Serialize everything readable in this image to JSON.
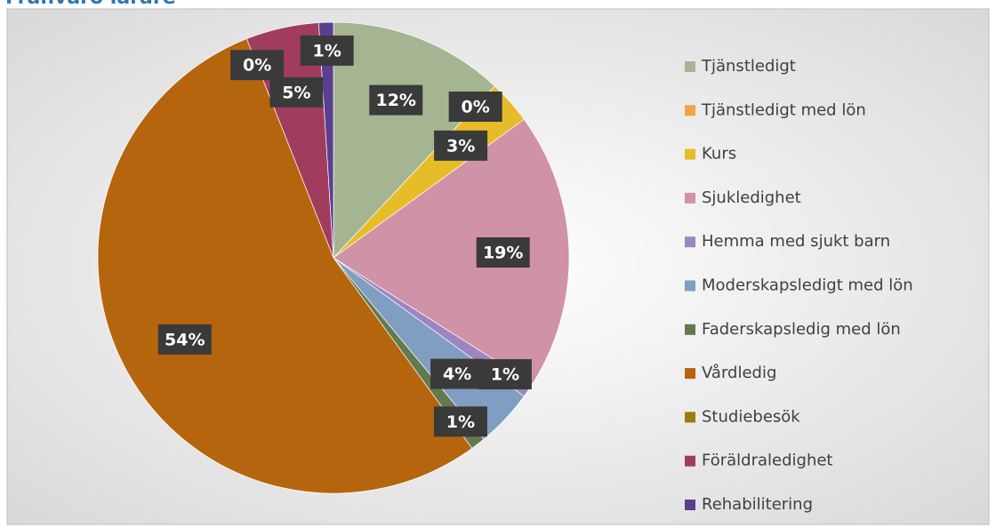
{
  "chart_data": {
    "type": "pie",
    "title": "Frånvaro lärare",
    "categories": [
      "Tjänstledigt",
      "Tjänstledigt med lön",
      "Kurs",
      "Sjukledighet",
      "Hemma med sjukt barn",
      "Moderskapsledigt med lön",
      "Faderskapsledig med lön",
      "Vårdledig",
      "Studiebesök",
      "Föräldraledighet",
      "Rehabilitering"
    ],
    "values": [
      12,
      0,
      3,
      19,
      1,
      4,
      1,
      54,
      0,
      5,
      1
    ],
    "value_labels": [
      "12%",
      "0%",
      "3%",
      "19%",
      "1%",
      "4%",
      "1%",
      "54%",
      "0%",
      "5%",
      "1%"
    ],
    "colors": [
      "#a5b592",
      "#f3a447",
      "#e7bc29",
      "#d092a7",
      "#9c85c0",
      "#809ec2",
      "#637a4f",
      "#b5650d",
      "#9a7d0a",
      "#a23c5e",
      "#5b3f8f"
    ],
    "legend": "right"
  }
}
